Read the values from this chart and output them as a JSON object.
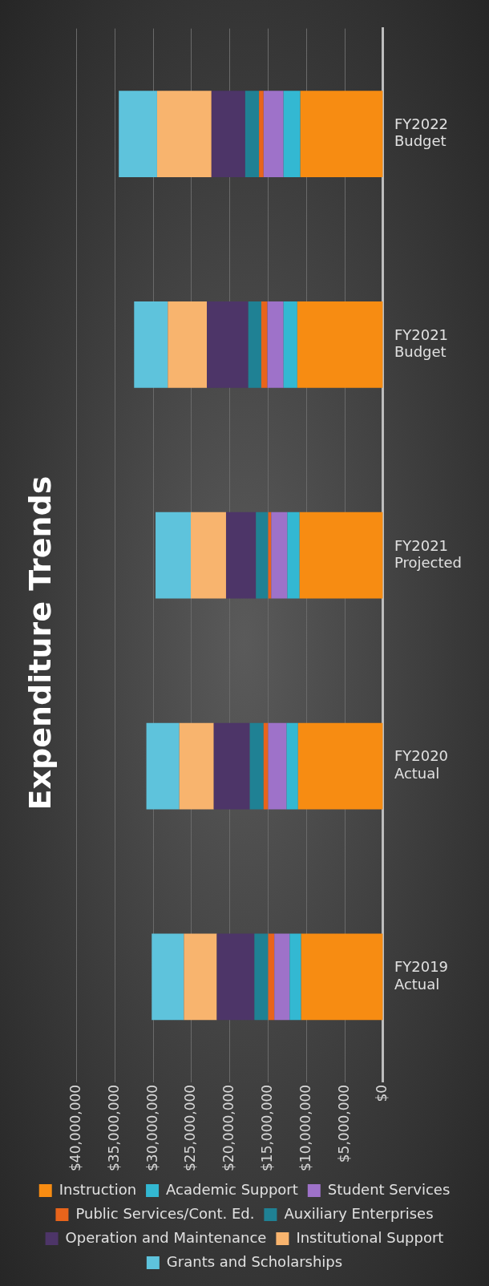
{
  "chart_data": {
    "type": "bar",
    "title": "Expenditure Trends",
    "stacked": true,
    "orientation": "horizontal",
    "grid": "x",
    "legend": "bottom",
    "categories": [
      "FY2022 Budget",
      "FY2021 Budget",
      "FY2021 Projected",
      "FY2020 Actual",
      "FY2019 Actual"
    ],
    "xlim": [
      40000000,
      0
    ],
    "xticks": [
      {
        "value": 0,
        "label": "$0"
      },
      {
        "value": 5000000,
        "label": "$5,000,000"
      },
      {
        "value": 10000000,
        "label": "$10,000,000"
      },
      {
        "value": 15000000,
        "label": "$15,000,000"
      },
      {
        "value": 20000000,
        "label": "$20,000,000"
      },
      {
        "value": 25000000,
        "label": "$25,000,000"
      },
      {
        "value": 30000000,
        "label": "$30,000,000"
      },
      {
        "value": 35000000,
        "label": "$35,000,000"
      },
      {
        "value": 40000000,
        "label": "$40,000,000"
      }
    ],
    "series": [
      {
        "name": "Instruction",
        "color": "#f78c12",
        "values": [
          10800000,
          11200000,
          10900000,
          11100000,
          10700000
        ]
      },
      {
        "name": "Academic Support",
        "color": "#33b8d2",
        "values": [
          2200000,
          1800000,
          1600000,
          1500000,
          1500000
        ]
      },
      {
        "name": "Student Services",
        "color": "#9e72c9",
        "values": [
          2600000,
          2100000,
          2100000,
          2400000,
          2000000
        ]
      },
      {
        "name": "Public Services/Cont. Ed.",
        "color": "#e8641b",
        "values": [
          600000,
          800000,
          400000,
          600000,
          800000
        ]
      },
      {
        "name": "Auxiliary Enterprises",
        "color": "#1f8194",
        "values": [
          1800000,
          1700000,
          1600000,
          1800000,
          1800000
        ]
      },
      {
        "name": "Operation and Maintenance",
        "color": "#4d3568",
        "values": [
          4400000,
          5400000,
          3900000,
          4700000,
          4900000
        ]
      },
      {
        "name": "Institutional Support",
        "color": "#f8b46e",
        "values": [
          7100000,
          5100000,
          4600000,
          4500000,
          4300000
        ]
      },
      {
        "name": "Grants and Scholarships",
        "color": "#5ec3dc",
        "values": [
          5000000,
          4400000,
          4600000,
          4300000,
          4200000
        ]
      }
    ]
  }
}
